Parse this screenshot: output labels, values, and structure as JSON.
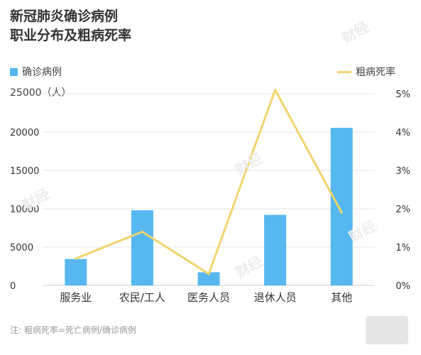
{
  "title": {
    "line1": "新冠肺炎确诊病例",
    "line2": "职业分布及粗病死率"
  },
  "colors": {
    "bar": "#56b7f1",
    "line": "#f3d36d",
    "axis_text": "#333333",
    "grid": "#e5e5e5",
    "note": "#999999"
  },
  "watermark_text": "财经",
  "note": "注: 粗病死率=死亡病例/确诊病例",
  "chart_data": {
    "type": "bar",
    "title": "新冠肺炎确诊病例 职业分布及粗病死率",
    "categories": [
      "服务业",
      "农民/工人",
      "医务人员",
      "退休人员",
      "其他"
    ],
    "series": [
      {
        "name": "确诊病例",
        "type": "bar",
        "axis": "left",
        "values": [
          3450,
          9800,
          1716,
          9200,
          20550
        ]
      },
      {
        "name": "粗病死率",
        "type": "line",
        "axis": "right",
        "unit": "%",
        "values": [
          0.7,
          1.4,
          0.3,
          5.1,
          1.9
        ]
      }
    ],
    "y_left": {
      "unit_label": "（人）",
      "range": [
        0,
        25000
      ],
      "ticks": [
        "0",
        "5000",
        "10000",
        "15000",
        "20000",
        "25000"
      ]
    },
    "y_right": {
      "range": [
        0,
        5
      ],
      "ticks": [
        "0%",
        "1%",
        "2%",
        "3%",
        "4%",
        "5%"
      ]
    },
    "grid": true,
    "legend": "top"
  }
}
